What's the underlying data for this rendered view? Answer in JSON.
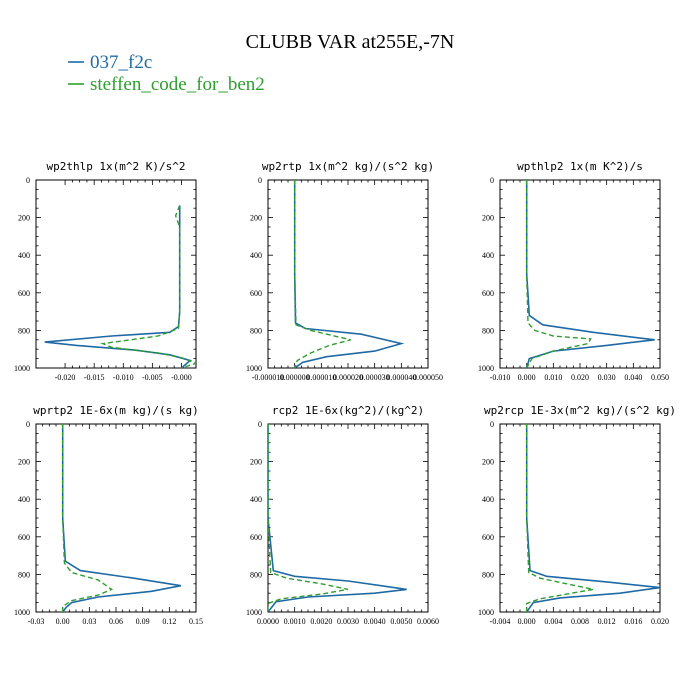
{
  "figure": {
    "title": "CLUBB VAR at255E,-7N",
    "legend": [
      {
        "label": "037_f2c",
        "color": "#1f6aa5",
        "style": "solid"
      },
      {
        "label": "steffen_code_for_ben2",
        "color": "#2e9e2e",
        "style": "dashed"
      }
    ]
  },
  "chart_data": [
    {
      "type": "line",
      "title": "wp2thlp  1x(m^2 K)/s^2",
      "xlim": [
        -0.025,
        0.0025
      ],
      "ylim": [
        1000,
        0
      ],
      "xticks": [
        -0.02,
        -0.015,
        -0.01,
        -0.005,
        0.0
      ],
      "xtick_labels": [
        "-0.020",
        "-0.015",
        "-0.010",
        "-0.005",
        "-0.000"
      ],
      "yticks": [
        0,
        200,
        400,
        600,
        800,
        1000
      ],
      "series": [
        {
          "name": "037_f2c",
          "x": [
            -0.0003,
            -0.0003,
            -0.0003,
            -0.0003,
            -0.0005,
            -0.002,
            -0.012,
            -0.0235,
            -0.018,
            -0.008,
            -0.002,
            0.0015,
            0.0
          ],
          "y": [
            135,
            300,
            500,
            700,
            780,
            810,
            830,
            862,
            880,
            905,
            930,
            960,
            1000
          ]
        },
        {
          "name": "steffen_code_for_ben2",
          "x": [
            -0.0003,
            -0.001,
            -0.0003,
            -0.0003,
            -0.0003,
            -0.0005,
            -0.004,
            -0.0135,
            -0.012,
            -0.004,
            0.0,
            0.0025,
            0.0
          ],
          "y": [
            135,
            190,
            250,
            500,
            700,
            790,
            830,
            870,
            890,
            920,
            945,
            975,
            1000
          ]
        }
      ]
    },
    {
      "type": "line",
      "title": "wp2rtp  1x(m^2 kg)/(s^2 kg)",
      "xlim": [
        -1e-05,
        5e-05
      ],
      "ylim": [
        1000,
        0
      ],
      "xticks": [
        -1e-05,
        0.0,
        1e-05,
        2e-05,
        3e-05,
        4e-05,
        5e-05
      ],
      "xtick_labels": [
        "-0.000010",
        "0.000000",
        "0.000010",
        "0.000020",
        "0.000030",
        "0.000040",
        "0.000050"
      ],
      "yticks": [
        0,
        200,
        400,
        600,
        800,
        1000
      ],
      "series": [
        {
          "name": "037_f2c",
          "x": [
            0.0,
            0.0,
            0.0,
            3e-07,
            4e-06,
            2.5e-05,
            4e-05,
            3e-05,
            1.2e-05,
            3e-06,
            0.0
          ],
          "y": [
            0,
            200,
            500,
            760,
            790,
            820,
            870,
            910,
            940,
            970,
            1000
          ]
        },
        {
          "name": "steffen_code_for_ben2",
          "x": [
            0.0,
            0.0,
            0.0,
            5e-07,
            6e-06,
            2.1e-05,
            1.3e-05,
            6e-06,
            1e-06,
            0.0
          ],
          "y": [
            0,
            200,
            500,
            770,
            800,
            850,
            880,
            920,
            960,
            1000
          ]
        }
      ]
    },
    {
      "type": "line",
      "title": "wpthlp2  1x(m K^2)/s",
      "xlim": [
        -0.01,
        0.05
      ],
      "ylim": [
        1000,
        0
      ],
      "xticks": [
        -0.01,
        0.0,
        0.01,
        0.02,
        0.03,
        0.04,
        0.05
      ],
      "xtick_labels": [
        "-0.010",
        "0.000",
        "0.010",
        "0.020",
        "0.030",
        "0.040",
        "0.050"
      ],
      "yticks": [
        0,
        200,
        400,
        600,
        800,
        1000
      ],
      "series": [
        {
          "name": "037_f2c",
          "x": [
            0.0,
            0.0,
            0.0,
            0.001,
            0.006,
            0.025,
            0.048,
            0.03,
            0.01,
            0.001,
            0.0
          ],
          "y": [
            0,
            200,
            500,
            720,
            770,
            810,
            850,
            880,
            910,
            950,
            1000
          ]
        },
        {
          "name": "steffen_code_for_ben2",
          "x": [
            0.0,
            0.0,
            0.0,
            0.0005,
            0.003,
            0.01,
            0.024,
            0.023,
            0.01,
            0.002,
            0.0
          ],
          "y": [
            0,
            200,
            500,
            760,
            800,
            830,
            845,
            870,
            910,
            950,
            1000
          ]
        }
      ]
    },
    {
      "type": "line",
      "title": "wprtp2  1E-6x(m kg)/(s kg)",
      "xlim": [
        -0.03,
        0.15
      ],
      "ylim": [
        1000,
        0
      ],
      "xticks": [
        -0.03,
        0.0,
        0.03,
        0.06,
        0.09,
        0.12,
        0.15
      ],
      "xtick_labels": [
        "-0.03",
        "0.00",
        "0.03",
        "0.06",
        "0.09",
        "0.12",
        "0.15"
      ],
      "yticks": [
        0,
        200,
        400,
        600,
        800,
        1000
      ],
      "series": [
        {
          "name": "037_f2c",
          "x": [
            0.0,
            0.0,
            0.0,
            0.003,
            0.02,
            0.08,
            0.133,
            0.1,
            0.04,
            0.01,
            0.004,
            0.0
          ],
          "y": [
            0,
            200,
            500,
            730,
            780,
            820,
            860,
            890,
            920,
            950,
            975,
            1000
          ]
        },
        {
          "name": "steffen_code_for_ben2",
          "x": [
            0.0,
            0.0,
            0.0,
            0.002,
            0.01,
            0.04,
            0.055,
            0.04,
            0.01,
            0.0,
            0.0
          ],
          "y": [
            0,
            200,
            500,
            740,
            790,
            830,
            880,
            910,
            940,
            970,
            1000
          ]
        }
      ]
    },
    {
      "type": "line",
      "title": "rcp2  1E-6x(kg^2)/(kg^2)",
      "xlim": [
        0.0,
        0.006
      ],
      "ylim": [
        1000,
        0
      ],
      "xticks": [
        0.0,
        0.001,
        0.002,
        0.003,
        0.004,
        0.005,
        0.006
      ],
      "xtick_labels": [
        "0.0000",
        "0.0010",
        "0.0020",
        "0.0030",
        "0.0040",
        "0.0050",
        "0.0060"
      ],
      "yticks": [
        0,
        200,
        400,
        600,
        800,
        1000
      ],
      "series": [
        {
          "name": "037_f2c",
          "x": [
            0.0,
            0.0,
            0.0,
            0.0002,
            0.001,
            0.003,
            0.0052,
            0.004,
            0.0015,
            0.0003,
            0.0
          ],
          "y": [
            0,
            200,
            500,
            780,
            810,
            835,
            880,
            900,
            920,
            945,
            1000
          ]
        },
        {
          "name": "steffen_code_for_ben2",
          "x": [
            0.0,
            0.0,
            0.0,
            0.0001,
            0.0007,
            0.002,
            0.003,
            0.002,
            0.0005,
            0.0,
            0.0
          ],
          "y": [
            0,
            200,
            500,
            790,
            820,
            850,
            880,
            905,
            930,
            955,
            1000
          ]
        }
      ]
    },
    {
      "type": "line",
      "title": "wp2rcp  1E-3x(m^2 kg)/(s^2 kg)",
      "xlim": [
        -0.004,
        0.02
      ],
      "ylim": [
        1000,
        0
      ],
      "xticks": [
        -0.004,
        0.0,
        0.004,
        0.008,
        0.012,
        0.016,
        0.02
      ],
      "xtick_labels": [
        "-0.004",
        "0.000",
        "0.004",
        "0.008",
        "0.012",
        "0.016",
        "0.020"
      ],
      "yticks": [
        0,
        200,
        400,
        600,
        800,
        1000
      ],
      "series": [
        {
          "name": "037_f2c",
          "x": [
            0.0,
            0.0,
            0.0,
            0.0005,
            0.003,
            0.012,
            0.02,
            0.014,
            0.005,
            0.001,
            0.0
          ],
          "y": [
            0,
            200,
            500,
            780,
            810,
            840,
            870,
            900,
            925,
            950,
            1000
          ]
        },
        {
          "name": "steffen_code_for_ben2",
          "x": [
            0.0,
            0.0,
            0.0,
            0.0003,
            0.002,
            0.006,
            0.01,
            0.006,
            0.002,
            0.0,
            0.0
          ],
          "y": [
            0,
            200,
            500,
            790,
            820,
            850,
            880,
            905,
            930,
            955,
            1000
          ]
        }
      ]
    }
  ]
}
